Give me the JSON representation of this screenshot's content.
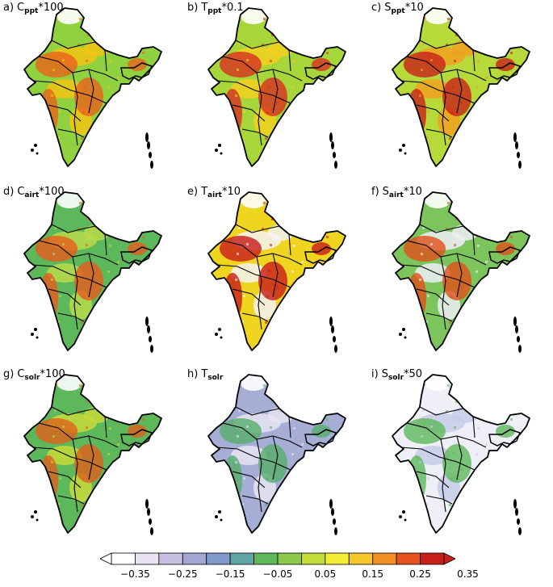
{
  "panels": [
    {
      "letter": "a)",
      "var": "C",
      "sub": "ppt",
      "suffix": "*100",
      "dominant": "#8fd13f",
      "hot": "#e8611d",
      "hot2": "#f2c414"
    },
    {
      "letter": "b)",
      "var": "T",
      "sub": "ppt",
      "suffix": "*0.1",
      "dominant": "#a7d63a",
      "hot": "#d7301f",
      "hot2": "#f2d020"
    },
    {
      "letter": "c)",
      "var": "S",
      "sub": "ppt",
      "suffix": "*10",
      "dominant": "#b8d93a",
      "hot": "#c7201a",
      "hot2": "#f0a020"
    },
    {
      "letter": "d)",
      "var": "C",
      "sub": "airt",
      "suffix": "*100",
      "dominant": "#5cb85a",
      "hot": "#e85a1d",
      "hot2": "#b7d94b"
    },
    {
      "letter": "e)",
      "var": "T",
      "sub": "airt",
      "suffix": "*10",
      "dominant": "#f0d520",
      "hot": "#c81a1a",
      "hot2": "#f3f3f6"
    },
    {
      "letter": "f)",
      "var": "S",
      "sub": "airt",
      "suffix": "*10",
      "dominant": "#7cc45c",
      "hot": "#e0501c",
      "hot2": "#eef0f6"
    },
    {
      "letter": "g)",
      "var": "C",
      "sub": "solr",
      "suffix": "*100",
      "dominant": "#5cb85a",
      "hot": "#e0601c",
      "hot2": "#c5d93a"
    },
    {
      "letter": "h)",
      "var": "T",
      "sub": "solr",
      "suffix": "",
      "dominant": "#a7aed6",
      "hot": "#56ad6a",
      "hot2": "#e6e3f2"
    },
    {
      "letter": "i)",
      "var": "S",
      "sub": "solr",
      "suffix": "*50",
      "dominant": "#eeeff7",
      "hot": "#5cb85a",
      "hot2": "#c7cbe6"
    }
  ],
  "colorbar": {
    "colors": [
      "#ffffff",
      "#e9e3f3",
      "#c7bfe1",
      "#a3a6d3",
      "#7f9ac8",
      "#5ea7a4",
      "#5cb85a",
      "#8dc84a",
      "#c4dc3a",
      "#f2ee34",
      "#f5c72a",
      "#f08f24",
      "#e5531e",
      "#c7201a"
    ],
    "tick_labels": [
      "−0.35",
      "−0.25",
      "−0.15",
      "−0.05",
      "0.05",
      "0.15",
      "0.25",
      "0.35"
    ],
    "min": -0.35,
    "max": 0.35
  }
}
